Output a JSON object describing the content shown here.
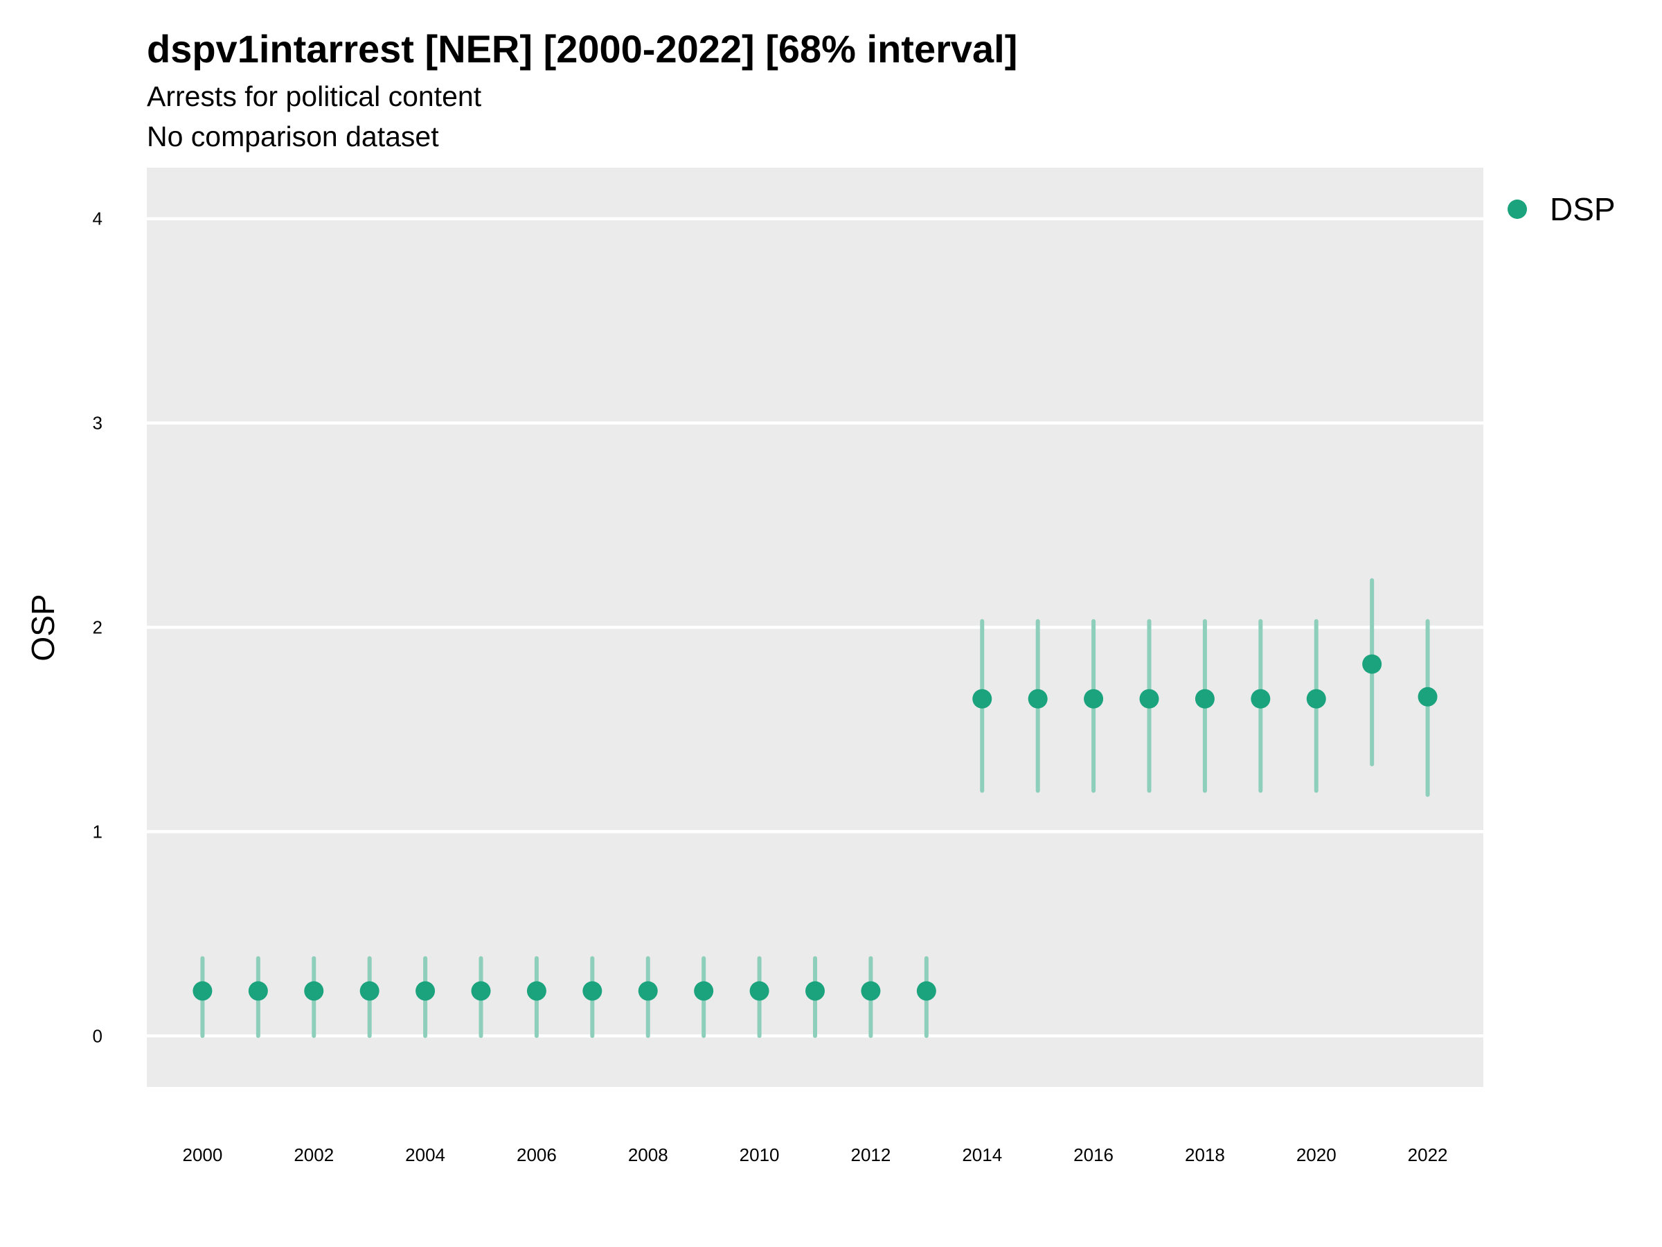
{
  "chart_data": {
    "type": "scatter",
    "title": "dspv1intarrest [NER] [2000-2022] [68% interval]",
    "subtitle": "Arrests for political content",
    "caption": "No comparison dataset",
    "xlabel": "",
    "ylabel": "OSP",
    "x_ticks": [
      "2000",
      "2002",
      "2004",
      "2006",
      "2008",
      "2010",
      "2012",
      "2014",
      "2016",
      "2018",
      "2020",
      "2022"
    ],
    "y_ticks": [
      "0",
      "1",
      "2",
      "3",
      "4"
    ],
    "xlim": [
      1999,
      2023
    ],
    "ylim": [
      -0.25,
      4.25
    ],
    "grid": true,
    "legend_position": "right",
    "series": [
      {
        "name": "DSP",
        "color": "#1aa37d",
        "interval_color": "#8ecfbb",
        "points": [
          {
            "x": 2000,
            "y": 0.22,
            "low": 0.0,
            "high": 0.38
          },
          {
            "x": 2001,
            "y": 0.22,
            "low": 0.0,
            "high": 0.38
          },
          {
            "x": 2002,
            "y": 0.22,
            "low": 0.0,
            "high": 0.38
          },
          {
            "x": 2003,
            "y": 0.22,
            "low": 0.0,
            "high": 0.38
          },
          {
            "x": 2004,
            "y": 0.22,
            "low": 0.0,
            "high": 0.38
          },
          {
            "x": 2005,
            "y": 0.22,
            "low": 0.0,
            "high": 0.38
          },
          {
            "x": 2006,
            "y": 0.22,
            "low": 0.0,
            "high": 0.38
          },
          {
            "x": 2007,
            "y": 0.22,
            "low": 0.0,
            "high": 0.38
          },
          {
            "x": 2008,
            "y": 0.22,
            "low": 0.0,
            "high": 0.38
          },
          {
            "x": 2009,
            "y": 0.22,
            "low": 0.0,
            "high": 0.38
          },
          {
            "x": 2010,
            "y": 0.22,
            "low": 0.0,
            "high": 0.38
          },
          {
            "x": 2011,
            "y": 0.22,
            "low": 0.0,
            "high": 0.38
          },
          {
            "x": 2012,
            "y": 0.22,
            "low": 0.0,
            "high": 0.38
          },
          {
            "x": 2013,
            "y": 0.22,
            "low": 0.0,
            "high": 0.38
          },
          {
            "x": 2014,
            "y": 1.65,
            "low": 1.2,
            "high": 2.03
          },
          {
            "x": 2015,
            "y": 1.65,
            "low": 1.2,
            "high": 2.03
          },
          {
            "x": 2016,
            "y": 1.65,
            "low": 1.2,
            "high": 2.03
          },
          {
            "x": 2017,
            "y": 1.65,
            "low": 1.2,
            "high": 2.03
          },
          {
            "x": 2018,
            "y": 1.65,
            "low": 1.2,
            "high": 2.03
          },
          {
            "x": 2019,
            "y": 1.65,
            "low": 1.2,
            "high": 2.03
          },
          {
            "x": 2020,
            "y": 1.65,
            "low": 1.2,
            "high": 2.03
          },
          {
            "x": 2021,
            "y": 1.82,
            "low": 1.33,
            "high": 2.23
          },
          {
            "x": 2022,
            "y": 1.66,
            "low": 1.18,
            "high": 2.03
          }
        ]
      }
    ]
  }
}
